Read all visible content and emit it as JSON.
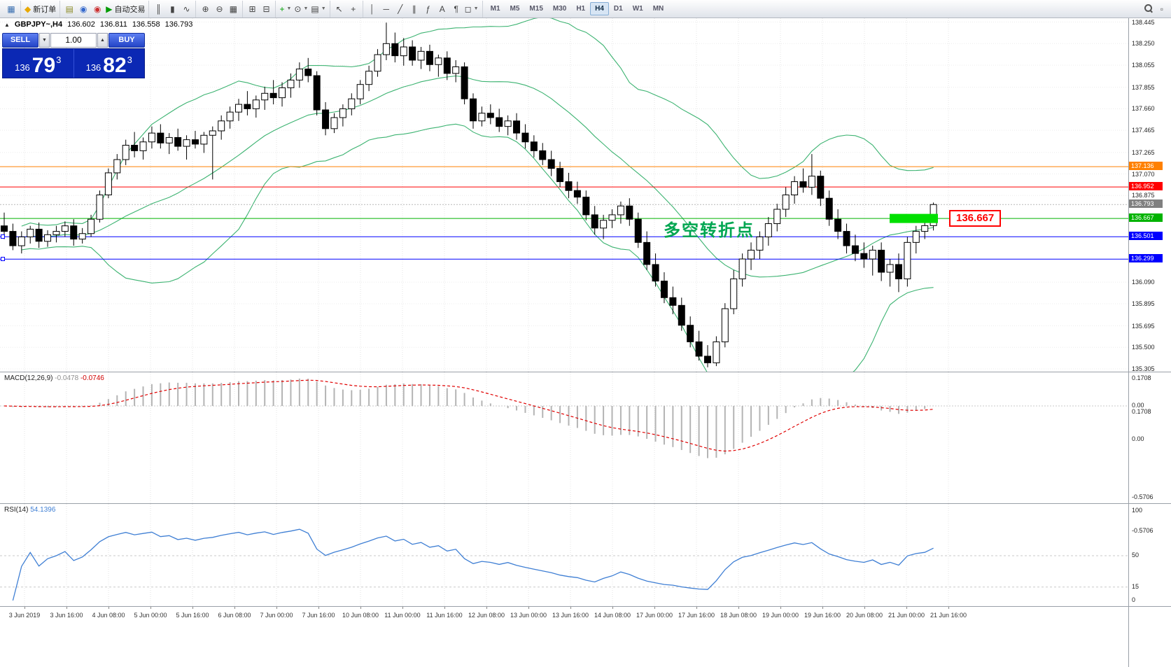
{
  "toolbar": {
    "groups": [
      {
        "items": [
          {
            "name": "new-chart-icon",
            "glyph": "▦",
            "color": "#3a6fb0"
          }
        ]
      },
      {
        "items": [
          {
            "name": "new-order-button",
            "glyph": "◆",
            "color": "#e8a800",
            "label": "新订单"
          }
        ]
      },
      {
        "items": [
          {
            "name": "profiles-icon",
            "glyph": "▤",
            "color": "#8c8c28"
          },
          {
            "name": "community-icon",
            "glyph": "◉",
            "color": "#3468cc"
          },
          {
            "name": "mql5-icon",
            "glyph": "◉",
            "color": "#cc3030"
          },
          {
            "name": "autotrading-button",
            "glyph": "▶",
            "color": "#009a00",
            "label": "自动交易"
          }
        ]
      },
      {
        "items": [
          {
            "name": "bars-chart-button",
            "glyph": "║"
          },
          {
            "name": "candlestick-chart-button",
            "glyph": "▮"
          },
          {
            "name": "line-chart-button",
            "glyph": "∿"
          }
        ]
      },
      {
        "items": [
          {
            "name": "zoom-in-button",
            "glyph": "⊕"
          },
          {
            "name": "zoom-out-button",
            "glyph": "⊖"
          },
          {
            "name": "tile-windows-button",
            "glyph": "▦"
          }
        ]
      },
      {
        "items": [
          {
            "name": "arrange-windows-button",
            "glyph": "⊞"
          },
          {
            "name": "cascade-windows-button",
            "glyph": "⊟"
          }
        ]
      },
      {
        "items": [
          {
            "name": "indicators-button",
            "glyph": "+",
            "color": "#00a000",
            "dd": true
          },
          {
            "name": "periods-button",
            "glyph": "⊙",
            "dd": true
          },
          {
            "name": "template-button",
            "glyph": "▤",
            "dd": true
          }
        ]
      },
      {
        "items": [
          {
            "name": "cursor-button",
            "glyph": "↖"
          },
          {
            "name": "crosshair-button",
            "glyph": "+"
          }
        ]
      },
      {
        "items": [
          {
            "name": "vertical-line-button",
            "glyph": "│"
          },
          {
            "name": "horizontal-line-button",
            "glyph": "─"
          },
          {
            "name": "trendline-button",
            "glyph": "╱"
          },
          {
            "name": "channel-button",
            "glyph": "∥"
          },
          {
            "name": "fibonacci-button",
            "glyph": "ƒ"
          },
          {
            "name": "text-button",
            "glyph": "A"
          },
          {
            "name": "label-button",
            "glyph": "¶"
          },
          {
            "name": "shapes-button",
            "glyph": "◻",
            "dd": true
          }
        ]
      }
    ],
    "timeframes": [
      "M1",
      "M5",
      "M15",
      "M30",
      "H1",
      "H4",
      "D1",
      "W1",
      "MN"
    ],
    "active_timeframe": "H4",
    "right_panel_glyph": "▫"
  },
  "icons": {
    "collapse": "▲",
    "vol_down": "▼",
    "vol_up": "▲"
  },
  "quote": {
    "symbol": "GBPJPY~,H4",
    "open": "136.602",
    "high": "136.811",
    "low": "136.558",
    "close": "136.793"
  },
  "trade_panel": {
    "sell_label": "SELL",
    "buy_label": "BUY",
    "volume": "1.00",
    "sell_prefix": "136",
    "sell_big": "79",
    "sell_sup": "3",
    "buy_prefix": "136",
    "buy_big": "82",
    "buy_sup": "3"
  },
  "annotation": {
    "text": "多空转折点",
    "x": 948,
    "price": 136.66,
    "color": "#00a651"
  },
  "callout": {
    "text": "136.667",
    "price": 136.667,
    "x": 1356,
    "color": "#ff0000"
  },
  "highlight": {
    "price": 136.667,
    "x": 1271,
    "width": 69,
    "height": 13,
    "color": "#00e000"
  },
  "levels": [
    {
      "value": 137.136,
      "label": "137.136",
      "color": "#ff8000"
    },
    {
      "value": 136.952,
      "label": "136.952",
      "color": "#ff0000"
    },
    {
      "value": 136.667,
      "label": "136.667",
      "color": "#00b300"
    },
    {
      "value": 136.501,
      "label": "136.501",
      "color": "#0000ff"
    },
    {
      "value": 136.299,
      "label": "136.299",
      "color": "#0000ff"
    }
  ],
  "current_price": {
    "value": 136.793,
    "label": "136.793",
    "color": "#808080"
  },
  "price_scale": {
    "max": 138.48,
    "span": 3.2,
    "ticks": [
      "138.445",
      "138.250",
      "138.055",
      "137.855",
      "137.660",
      "137.465",
      "137.265",
      "137.070",
      "136.875",
      "136.090",
      "135.895",
      "135.695",
      "135.500",
      "135.305"
    ]
  },
  "macd": {
    "label": "MACD(12,26,9)",
    "value1": "-0.0478",
    "value2": "-0.0746",
    "ticks": [
      {
        "label": "0.1708",
        "v": 0.1708
      },
      {
        "label": "0.00",
        "v": 0
      },
      {
        "label": "-0.5706",
        "v": -0.5706
      }
    ]
  },
  "rsi": {
    "label": "RSI(14)",
    "value": "54.1396",
    "levels": [
      50,
      15
    ],
    "ticks": [
      {
        "label": "100",
        "v": 100
      },
      {
        "label": "50",
        "v": 50
      },
      {
        "label": "15",
        "v": 15
      },
      {
        "label": "0",
        "v": 0
      }
    ]
  },
  "time_axis": [
    "3 Jun 2019",
    "3 Jun 16:00",
    "4 Jun 08:00",
    "5 Jun 00:00",
    "5 Jun 16:00",
    "6 Jun 08:00",
    "7 Jun 00:00",
    "7 Jun 16:00",
    "10 Jun 08:00",
    "11 Jun 00:00",
    "11 Jun 16:00",
    "12 Jun 08:00",
    "13 Jun 00:00",
    "13 Jun 16:00",
    "14 Jun 08:00",
    "17 Jun 00:00",
    "17 Jun 16:00",
    "18 Jun 08:00",
    "19 Jun 00:00",
    "19 Jun 16:00",
    "20 Jun 08:00",
    "21 Jun 00:00",
    "21 Jun 16:00"
  ],
  "chart_data": {
    "type": "candlestick",
    "symbol": "GBPJPY~",
    "timeframe": "H4",
    "ylim": [
      135.28,
      138.48
    ],
    "indicators": [
      {
        "name": "Bollinger Bands",
        "period": 20,
        "deviation": 2,
        "color": "#3cb371"
      },
      {
        "name": "MACD",
        "params": "12,26,9",
        "values": [
          -0.0478,
          -0.0746
        ]
      },
      {
        "name": "RSI",
        "period": 14,
        "value": 54.1396
      }
    ],
    "candles": [
      [
        136.6,
        136.72,
        136.48,
        136.55
      ],
      [
        136.55,
        136.62,
        136.38,
        136.42
      ],
      [
        136.42,
        136.55,
        136.35,
        136.5
      ],
      [
        136.5,
        136.6,
        136.44,
        136.57
      ],
      [
        136.57,
        136.63,
        136.4,
        136.46
      ],
      [
        136.46,
        136.56,
        136.41,
        136.52
      ],
      [
        136.52,
        136.6,
        136.45,
        136.55
      ],
      [
        136.55,
        136.64,
        136.5,
        136.6
      ],
      [
        136.6,
        136.66,
        136.42,
        136.48
      ],
      [
        136.48,
        136.58,
        136.44,
        136.53
      ],
      [
        136.53,
        136.7,
        136.5,
        136.66
      ],
      [
        136.66,
        136.92,
        136.63,
        136.88
      ],
      [
        136.88,
        137.12,
        136.85,
        137.08
      ],
      [
        137.08,
        137.25,
        137.02,
        137.2
      ],
      [
        137.2,
        137.38,
        137.15,
        137.33
      ],
      [
        137.33,
        137.45,
        137.22,
        137.28
      ],
      [
        137.28,
        137.4,
        137.2,
        137.36
      ],
      [
        137.36,
        137.5,
        137.3,
        137.44
      ],
      [
        137.44,
        137.52,
        137.3,
        137.35
      ],
      [
        137.35,
        137.44,
        137.25,
        137.4
      ],
      [
        137.4,
        137.48,
        137.28,
        137.32
      ],
      [
        137.32,
        137.42,
        137.2,
        137.38
      ],
      [
        137.38,
        137.46,
        137.3,
        137.34
      ],
      [
        137.34,
        137.45,
        137.26,
        137.42
      ],
      [
        137.42,
        137.5,
        137.02,
        137.46
      ],
      [
        137.46,
        137.6,
        137.38,
        137.55
      ],
      [
        137.55,
        137.68,
        137.48,
        137.63
      ],
      [
        137.63,
        137.75,
        137.55,
        137.7
      ],
      [
        137.7,
        137.82,
        137.6,
        137.66
      ],
      [
        137.66,
        137.78,
        137.58,
        137.74
      ],
      [
        137.74,
        137.86,
        137.65,
        137.8
      ],
      [
        137.8,
        137.92,
        137.7,
        137.76
      ],
      [
        137.76,
        137.9,
        137.68,
        137.85
      ],
      [
        137.85,
        137.98,
        137.76,
        137.92
      ],
      [
        137.92,
        138.08,
        137.85,
        138.02
      ],
      [
        138.02,
        138.12,
        137.9,
        137.96
      ],
      [
        137.96,
        138.0,
        137.6,
        137.65
      ],
      [
        137.65,
        137.72,
        137.42,
        137.48
      ],
      [
        137.48,
        137.62,
        137.44,
        137.58
      ],
      [
        137.58,
        137.7,
        137.5,
        137.66
      ],
      [
        137.66,
        137.8,
        137.6,
        137.75
      ],
      [
        137.75,
        137.92,
        137.7,
        137.88
      ],
      [
        137.88,
        138.05,
        137.82,
        138.0
      ],
      [
        138.0,
        138.2,
        137.95,
        138.15
      ],
      [
        138.15,
        138.44,
        138.1,
        138.25
      ],
      [
        138.25,
        138.35,
        138.08,
        138.14
      ],
      [
        138.14,
        138.3,
        138.05,
        138.22
      ],
      [
        138.22,
        138.28,
        138.05,
        138.1
      ],
      [
        138.1,
        138.22,
        138.02,
        138.18
      ],
      [
        138.18,
        138.24,
        138.0,
        138.06
      ],
      [
        138.06,
        138.15,
        137.95,
        138.12
      ],
      [
        138.12,
        138.18,
        137.92,
        137.98
      ],
      [
        137.98,
        138.1,
        137.9,
        138.04
      ],
      [
        138.04,
        138.08,
        137.7,
        137.75
      ],
      [
        137.75,
        137.8,
        137.48,
        137.55
      ],
      [
        137.55,
        137.68,
        137.5,
        137.62
      ],
      [
        137.62,
        137.7,
        137.52,
        137.58
      ],
      [
        137.58,
        137.66,
        137.45,
        137.5
      ],
      [
        137.5,
        137.6,
        137.42,
        137.55
      ],
      [
        137.55,
        137.62,
        137.38,
        137.44
      ],
      [
        137.44,
        137.52,
        137.3,
        137.36
      ],
      [
        137.36,
        137.42,
        137.22,
        137.28
      ],
      [
        137.28,
        137.35,
        137.15,
        137.2
      ],
      [
        137.2,
        137.28,
        137.05,
        137.12
      ],
      [
        137.12,
        137.18,
        136.95,
        137.0
      ],
      [
        137.0,
        137.08,
        136.85,
        136.92
      ],
      [
        136.92,
        137.0,
        136.8,
        136.86
      ],
      [
        136.86,
        136.92,
        136.65,
        136.7
      ],
      [
        136.7,
        136.78,
        136.52,
        136.58
      ],
      [
        136.58,
        136.7,
        136.48,
        136.65
      ],
      [
        136.65,
        136.75,
        136.58,
        136.7
      ],
      [
        136.7,
        136.82,
        136.62,
        136.78
      ],
      [
        136.78,
        136.85,
        136.6,
        136.66
      ],
      [
        136.66,
        136.72,
        136.4,
        136.45
      ],
      [
        136.45,
        136.55,
        136.2,
        136.25
      ],
      [
        136.25,
        136.35,
        136.05,
        136.1
      ],
      [
        136.1,
        136.18,
        135.9,
        135.95
      ],
      [
        135.95,
        136.05,
        135.8,
        135.88
      ],
      [
        135.88,
        135.95,
        135.65,
        135.7
      ],
      [
        135.7,
        135.78,
        135.5,
        135.55
      ],
      [
        135.55,
        135.65,
        135.38,
        135.42
      ],
      [
        135.42,
        135.52,
        135.32,
        135.36
      ],
      [
        135.36,
        135.6,
        135.33,
        135.55
      ],
      [
        135.55,
        135.9,
        135.5,
        135.85
      ],
      [
        135.85,
        136.2,
        135.8,
        136.12
      ],
      [
        136.12,
        136.35,
        136.05,
        136.3
      ],
      [
        136.3,
        136.45,
        136.2,
        136.38
      ],
      [
        136.38,
        136.55,
        136.3,
        136.5
      ],
      [
        136.5,
        136.68,
        136.42,
        136.62
      ],
      [
        136.62,
        136.8,
        136.55,
        136.75
      ],
      [
        136.75,
        136.95,
        136.68,
        136.88
      ],
      [
        136.88,
        137.05,
        136.8,
        137.0
      ],
      [
        137.0,
        137.12,
        136.9,
        136.95
      ],
      [
        136.95,
        137.25,
        136.88,
        137.05
      ],
      [
        137.05,
        137.1,
        136.78,
        136.85
      ],
      [
        136.85,
        136.92,
        136.6,
        136.66
      ],
      [
        136.66,
        136.75,
        136.48,
        136.55
      ],
      [
        136.55,
        136.62,
        136.35,
        136.42
      ],
      [
        136.42,
        136.52,
        136.28,
        136.35
      ],
      [
        136.35,
        136.45,
        136.22,
        136.3
      ],
      [
        136.3,
        136.42,
        136.15,
        136.38
      ],
      [
        136.38,
        136.45,
        136.1,
        136.18
      ],
      [
        136.18,
        136.3,
        136.05,
        136.25
      ],
      [
        136.25,
        136.35,
        136.0,
        136.12
      ],
      [
        136.12,
        136.5,
        136.05,
        136.45
      ],
      [
        136.45,
        136.6,
        136.35,
        136.55
      ],
      [
        136.55,
        136.68,
        136.48,
        136.602
      ],
      [
        136.602,
        136.811,
        136.558,
        136.793
      ]
    ]
  }
}
